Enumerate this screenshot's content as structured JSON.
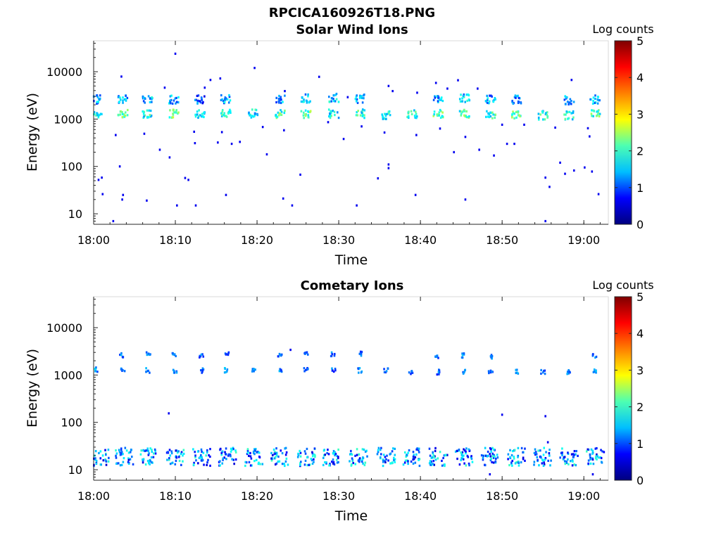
{
  "figure_title": "RPCICA160926T18.PNG",
  "colorbar_gradient": [
    "#00007f",
    "#0000ff",
    "#00bfff",
    "#4dffb2",
    "#ffff00",
    "#ff8000",
    "#ff0000",
    "#7f0000"
  ],
  "chart_data": [
    {
      "type": "heatmap",
      "title": "Solar Wind Ions",
      "xlabel": "Time",
      "ylabel": "Energy (eV)",
      "yscale": "log",
      "ylim": [
        6,
        45000
      ],
      "xlim_minutes": [
        0,
        63
      ],
      "xticks": [
        0,
        10,
        20,
        30,
        40,
        50,
        60
      ],
      "xtick_labels": [
        "18:00",
        "18:10",
        "18:20",
        "18:30",
        "18:40",
        "18:50",
        "19:00"
      ],
      "yticks": [
        10,
        100,
        1000,
        10000
      ],
      "ytick_labels": [
        "10",
        "100",
        "1000",
        "10000"
      ],
      "colorbar": {
        "label": "Log counts",
        "range": [
          0,
          5
        ],
        "ticks": [
          "0",
          "1",
          "2",
          "3",
          "4",
          "5"
        ]
      },
      "clusters": [
        {
          "t": 0.4,
          "e": 1300,
          "v": 2.0
        },
        {
          "t": 3.6,
          "e": 1300,
          "v": 2.2
        },
        {
          "t": 6.6,
          "e": 1300,
          "v": 2.0
        },
        {
          "t": 9.8,
          "e": 1300,
          "v": 2.3
        },
        {
          "t": 13.0,
          "e": 1300,
          "v": 2.0
        },
        {
          "t": 16.2,
          "e": 1300,
          "v": 2.0
        },
        {
          "t": 19.6,
          "e": 1300,
          "v": 1.8
        },
        {
          "t": 22.8,
          "e": 1300,
          "v": 2.2
        },
        {
          "t": 26.0,
          "e": 1300,
          "v": 2.3
        },
        {
          "t": 29.4,
          "e": 1300,
          "v": 1.9
        },
        {
          "t": 32.6,
          "e": 1300,
          "v": 2.0
        },
        {
          "t": 35.8,
          "e": 1200,
          "v": 1.9
        },
        {
          "t": 39.0,
          "e": 1250,
          "v": 2.1
        },
        {
          "t": 42.2,
          "e": 1300,
          "v": 2.2
        },
        {
          "t": 45.4,
          "e": 1300,
          "v": 2.2
        },
        {
          "t": 48.6,
          "e": 1250,
          "v": 2.0
        },
        {
          "t": 51.8,
          "e": 1200,
          "v": 2.3
        },
        {
          "t": 55.0,
          "e": 1200,
          "v": 1.9
        },
        {
          "t": 58.2,
          "e": 1200,
          "v": 2.0
        },
        {
          "t": 61.4,
          "e": 1300,
          "v": 2.2
        },
        {
          "t": 0.4,
          "e": 2600,
          "v": 1.3
        },
        {
          "t": 3.6,
          "e": 2600,
          "v": 1.5
        },
        {
          "t": 6.6,
          "e": 2600,
          "v": 1.5
        },
        {
          "t": 9.8,
          "e": 2600,
          "v": 1.4
        },
        {
          "t": 13.0,
          "e": 2600,
          "v": 1.1
        },
        {
          "t": 16.2,
          "e": 2600,
          "v": 1.4
        },
        {
          "t": 22.8,
          "e": 2600,
          "v": 1.3
        },
        {
          "t": 26.0,
          "e": 2700,
          "v": 1.5
        },
        {
          "t": 29.4,
          "e": 2800,
          "v": 1.6
        },
        {
          "t": 32.6,
          "e": 2700,
          "v": 1.4
        },
        {
          "t": 42.2,
          "e": 2700,
          "v": 1.4
        },
        {
          "t": 45.4,
          "e": 2800,
          "v": 1.6
        },
        {
          "t": 48.6,
          "e": 2600,
          "v": 1.4
        },
        {
          "t": 51.8,
          "e": 2600,
          "v": 1.1
        },
        {
          "t": 58.2,
          "e": 2500,
          "v": 1.4
        },
        {
          "t": 61.4,
          "e": 2600,
          "v": 1.5
        }
      ],
      "points": [
        [
          3.4,
          7900
        ],
        [
          10.0,
          24000
        ],
        [
          19.7,
          12000
        ],
        [
          27.6,
          7800
        ],
        [
          36.1,
          5000
        ],
        [
          41.9,
          5800
        ],
        [
          44.6,
          6600
        ],
        [
          58.5,
          6700
        ],
        [
          8.7,
          4600
        ],
        [
          13.6,
          4600
        ],
        [
          14.3,
          6700
        ],
        [
          15.5,
          7200
        ],
        [
          23.4,
          3900
        ],
        [
          31.1,
          2900
        ],
        [
          36.6,
          3900
        ],
        [
          39.6,
          3600
        ],
        [
          43.3,
          4400
        ],
        [
          47.0,
          4400
        ],
        [
          2.7,
          460
        ],
        [
          6.2,
          490
        ],
        [
          12.3,
          540
        ],
        [
          15.7,
          530
        ],
        [
          20.7,
          680
        ],
        [
          23.3,
          580
        ],
        [
          28.7,
          860
        ],
        [
          32.8,
          700
        ],
        [
          35.6,
          520
        ],
        [
          39.5,
          460
        ],
        [
          42.4,
          630
        ],
        [
          45.5,
          420
        ],
        [
          50.0,
          760
        ],
        [
          52.7,
          760
        ],
        [
          56.5,
          660
        ],
        [
          60.5,
          640
        ],
        [
          8.1,
          225
        ],
        [
          9.3,
          155
        ],
        [
          12.4,
          310
        ],
        [
          15.2,
          320
        ],
        [
          16.9,
          300
        ],
        [
          17.9,
          330
        ],
        [
          21.2,
          180
        ],
        [
          30.6,
          380
        ],
        [
          44.1,
          200
        ],
        [
          47.2,
          225
        ],
        [
          49.0,
          170
        ],
        [
          50.6,
          300
        ],
        [
          51.5,
          300
        ],
        [
          60.7,
          430
        ],
        [
          3.2,
          100
        ],
        [
          0.6,
          52
        ],
        [
          1.0,
          58
        ],
        [
          11.2,
          57
        ],
        [
          11.6,
          52
        ],
        [
          25.3,
          67
        ],
        [
          34.8,
          56
        ],
        [
          36.1,
          110
        ],
        [
          36.1,
          92
        ],
        [
          55.3,
          58
        ],
        [
          57.1,
          120
        ],
        [
          57.7,
          70
        ],
        [
          58.8,
          82
        ],
        [
          60.1,
          95
        ],
        [
          61.0,
          78
        ],
        [
          1.1,
          26
        ],
        [
          3.6,
          25
        ],
        [
          3.5,
          20
        ],
        [
          16.2,
          25
        ],
        [
          23.2,
          21
        ],
        [
          39.4,
          25
        ],
        [
          45.5,
          20
        ],
        [
          55.8,
          37
        ],
        [
          61.8,
          26
        ],
        [
          6.5,
          19
        ],
        [
          10.2,
          15
        ],
        [
          12.5,
          15
        ],
        [
          24.3,
          15
        ],
        [
          32.2,
          15
        ],
        [
          2.4,
          7
        ],
        [
          55.3,
          7
        ]
      ]
    },
    {
      "type": "heatmap",
      "title": "Cometary Ions",
      "xlabel": "Time",
      "ylabel": "Energy (eV)",
      "yscale": "log",
      "ylim": [
        6,
        45000
      ],
      "xlim_minutes": [
        0,
        63
      ],
      "xticks": [
        0,
        10,
        20,
        30,
        40,
        50,
        60
      ],
      "xtick_labels": [
        "18:00",
        "18:10",
        "18:20",
        "18:30",
        "18:40",
        "18:50",
        "19:00"
      ],
      "yticks": [
        10,
        100,
        1000,
        10000
      ],
      "ytick_labels": [
        "10",
        "100",
        "1000",
        "10000"
      ],
      "colorbar": {
        "label": "Log counts",
        "range": [
          0,
          5
        ],
        "ticks": [
          "0",
          "1",
          "2",
          "3",
          "4",
          "5"
        ]
      },
      "bursts_minutes": [
        0.8,
        3.8,
        6.8,
        10.0,
        13.2,
        16.4,
        19.6,
        22.8,
        26.0,
        29.2,
        32.4,
        35.8,
        39.0,
        42.2,
        45.4,
        48.6,
        51.8,
        55.0,
        58.2,
        61.4
      ],
      "upper_bursts": [
        {
          "t": 0.4,
          "e": 1300,
          "v": 1.2
        },
        {
          "t": 3.6,
          "e": 1250,
          "v": 1.1
        },
        {
          "t": 6.6,
          "e": 1250,
          "v": 1.1
        },
        {
          "t": 10.0,
          "e": 1250,
          "v": 1.1
        },
        {
          "t": 13.2,
          "e": 1250,
          "v": 1.0
        },
        {
          "t": 16.2,
          "e": 1250,
          "v": 1.2
        },
        {
          "t": 19.6,
          "e": 1250,
          "v": 1.0
        },
        {
          "t": 22.8,
          "e": 1250,
          "v": 1.0
        },
        {
          "t": 26.0,
          "e": 1250,
          "v": 1.0
        },
        {
          "t": 29.4,
          "e": 1250,
          "v": 0.9
        },
        {
          "t": 32.6,
          "e": 1250,
          "v": 1.0
        },
        {
          "t": 35.8,
          "e": 1250,
          "v": 1.0
        },
        {
          "t": 38.8,
          "e": 1150,
          "v": 0.9
        },
        {
          "t": 42.2,
          "e": 1150,
          "v": 1.0
        },
        {
          "t": 45.4,
          "e": 1150,
          "v": 1.0
        },
        {
          "t": 48.6,
          "e": 1100,
          "v": 1.0
        },
        {
          "t": 51.8,
          "e": 1150,
          "v": 1.1
        },
        {
          "t": 55.0,
          "e": 1150,
          "v": 1.0
        },
        {
          "t": 58.2,
          "e": 1150,
          "v": 1.0
        },
        {
          "t": 61.4,
          "e": 1200,
          "v": 1.1
        },
        {
          "t": 3.4,
          "e": 2600,
          "v": 1.0
        },
        {
          "t": 6.7,
          "e": 2700,
          "v": 1.1
        },
        {
          "t": 9.9,
          "e": 2600,
          "v": 1.0
        },
        {
          "t": 13.2,
          "e": 2600,
          "v": 0.9
        },
        {
          "t": 16.3,
          "e": 2700,
          "v": 1.0
        },
        {
          "t": 22.8,
          "e": 2600,
          "v": 0.9
        },
        {
          "t": 26.0,
          "e": 2700,
          "v": 1.0
        },
        {
          "t": 29.3,
          "e": 2700,
          "v": 1.0
        },
        {
          "t": 32.6,
          "e": 2800,
          "v": 0.9
        },
        {
          "t": 42.0,
          "e": 2400,
          "v": 1.0
        },
        {
          "t": 45.3,
          "e": 2600,
          "v": 1.1
        },
        {
          "t": 48.6,
          "e": 2400,
          "v": 1.0
        },
        {
          "t": 61.3,
          "e": 2500,
          "v": 1.0
        }
      ],
      "points": [
        [
          9.2,
          155
        ],
        [
          50.0,
          145
        ],
        [
          55.3,
          135
        ],
        [
          24.1,
          3400
        ],
        [
          48.5,
          8
        ],
        [
          61.1,
          8
        ],
        [
          55.6,
          38
        ]
      ]
    }
  ]
}
